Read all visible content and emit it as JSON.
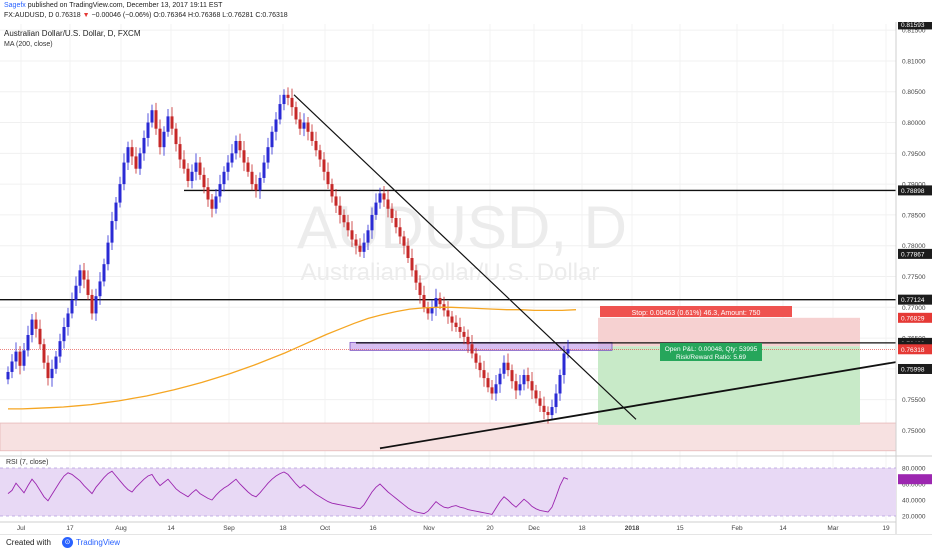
{
  "header": {
    "author": "Sagefx",
    "published": "published on TradingView.com, December 13, 2017 19:11 EST",
    "ticker": "FX:AUDUSD, D",
    "last": "0.76318",
    "arrow": "▼",
    "change": "−0.00046 (−0.06%)",
    "ohlc": "O:0.76364 H:0.76368 L:0.76281 C:0.76318"
  },
  "legend": {
    "symbol_title": "Australian Dollar/U.S. Dollar, D, FXCM",
    "ma_label": "MA (200, close)",
    "rsi_label": "RSI (7, close)"
  },
  "watermark": {
    "symbol": "AUDUSD, D",
    "name": "Australian Dollar/U.S. Dollar"
  },
  "position": {
    "stop_text": "Stop: 0.00463 (0.61%) 46.3, Amount: 750",
    "pnl_text": "Open P&L: 0.00048, Qty: 53995",
    "rr_text": "Risk/Reward Ratio: 5.69"
  },
  "footer": {
    "created_with": "Created with",
    "brand": "TradingView"
  },
  "colors": {
    "up": "#2a2ad4",
    "down": "#c62828",
    "ma": "#f5a623",
    "rsi": "#9c27b0",
    "rsi_band": "#e8d9f5",
    "stop_zone": "#f6d1d1",
    "target_zone": "#c8eac8",
    "supply_box": "#c9a8ee",
    "bottom_band": "#f7e1e1"
  },
  "chart_data": [
    {
      "type": "candlestick",
      "ylim": [
        0.7465,
        0.816
      ],
      "x_ticks": [
        "Jul",
        "17",
        "Aug",
        "14",
        "Sep",
        "18",
        "Oct",
        "16",
        "Nov",
        "20",
        "Dec",
        "18",
        "2018",
        "15",
        "Feb",
        "14",
        "Mar",
        "19"
      ],
      "y_ticks": [
        "0.81500",
        "0.81000",
        "0.80500",
        "0.80000",
        "0.79500",
        "0.79000",
        "0.78500",
        "0.78000",
        "0.77500",
        "0.77000",
        "0.76500",
        "0.76000",
        "0.75500",
        "0.75000"
      ],
      "price_labels": [
        {
          "value": 0.81593,
          "text": "0.81593",
          "color": "#222222"
        },
        {
          "value": 0.78898,
          "text": "0.78898",
          "color": "#222222"
        },
        {
          "value": 0.77867,
          "text": "0.77867",
          "color": "#222222"
        },
        {
          "value": 0.77124,
          "text": "0.77124",
          "color": "#222222"
        },
        {
          "value": 0.76829,
          "text": "0.76829",
          "color": "#e53935"
        },
        {
          "value": 0.76422,
          "text": "0.76422",
          "color": "#222222"
        },
        {
          "value": 0.76366,
          "text": "0.76366",
          "color": "#222222"
        },
        {
          "value": 0.76318,
          "text": "0.76318",
          "color": "#e53935"
        },
        {
          "value": 0.75998,
          "text": "0.75998",
          "color": "#222222"
        }
      ],
      "series": [
        {
          "name": "AUDUSD",
          "closes": [
            0.7595,
            0.7612,
            0.7628,
            0.7605,
            0.763,
            0.7655,
            0.768,
            0.7665,
            0.764,
            0.761,
            0.7585,
            0.76,
            0.762,
            0.7645,
            0.7668,
            0.769,
            0.7712,
            0.7735,
            0.776,
            0.7745,
            0.772,
            0.769,
            0.7718,
            0.7742,
            0.777,
            0.7805,
            0.784,
            0.787,
            0.79,
            0.7935,
            0.796,
            0.7945,
            0.7925,
            0.795,
            0.7975,
            0.8,
            0.802,
            0.799,
            0.796,
            0.7985,
            0.801,
            0.799,
            0.7965,
            0.794,
            0.7925,
            0.7905,
            0.792,
            0.7935,
            0.7915,
            0.7895,
            0.7875,
            0.786,
            0.788,
            0.79,
            0.792,
            0.7935,
            0.795,
            0.797,
            0.7955,
            0.7935,
            0.792,
            0.79,
            0.789,
            0.791,
            0.7935,
            0.796,
            0.7985,
            0.8005,
            0.803,
            0.8045,
            0.804,
            0.8025,
            0.8005,
            0.799,
            0.8,
            0.7985,
            0.797,
            0.7955,
            0.794,
            0.792,
            0.79,
            0.788,
            0.7865,
            0.785,
            0.7838,
            0.7825,
            0.781,
            0.78,
            0.779,
            0.7805,
            0.7825,
            0.785,
            0.787,
            0.7885,
            0.7875,
            0.786,
            0.7845,
            0.783,
            0.7815,
            0.78,
            0.778,
            0.776,
            0.774,
            0.772,
            0.77,
            0.769,
            0.77,
            0.7715,
            0.7705,
            0.7695,
            0.7685,
            0.7675,
            0.7668,
            0.766,
            0.7652,
            0.764,
            0.7625,
            0.761,
            0.7598,
            0.7585,
            0.757,
            0.756,
            0.7575,
            0.7592,
            0.761,
            0.7598,
            0.758,
            0.7565,
            0.7575,
            0.759,
            0.758,
            0.7565,
            0.7552,
            0.754,
            0.753,
            0.7525,
            0.7538,
            0.756,
            0.759,
            0.7625,
            0.7632
          ]
        },
        {
          "name": "MA (200, close)",
          "values": [
            0.7535,
            0.7535,
            0.7536,
            0.7537,
            0.7538,
            0.754,
            0.7542,
            0.7545,
            0.7548,
            0.7552,
            0.7556,
            0.7561,
            0.7566,
            0.7572,
            0.7578,
            0.7585,
            0.7592,
            0.76,
            0.7608,
            0.7617,
            0.7626,
            0.7636,
            0.7646,
            0.7656,
            0.7665,
            0.7674,
            0.7682,
            0.7688,
            0.7693,
            0.7697,
            0.7699,
            0.77,
            0.77,
            0.7699,
            0.7698,
            0.7697,
            0.7696,
            0.7696,
            0.7695,
            0.7695,
            0.7695,
            0.7696
          ]
        }
      ],
      "annotations": {
        "horizontal_levels": [
          0.78898,
          0.77124,
          0.76422
        ],
        "supply_box": [
          0.763,
          0.7643
        ],
        "stop_zone": [
          0.76366,
          0.76829
        ],
        "target_zone": [
          0.7509,
          0.76366
        ],
        "bottom_band": [
          0.7467,
          0.7512
        ],
        "down_trendline": [
          [
            0.8045
          ],
          [
            0.7518
          ]
        ],
        "up_trendline": [
          [
            0.7471
          ],
          [
            0.7611
          ]
        ]
      }
    },
    {
      "type": "line",
      "name": "RSI (7, close)",
      "ylim": [
        15,
        90
      ],
      "y_ticks": [
        "80.0000",
        "60.0000",
        "40.0000",
        "20.0000"
      ],
      "band": [
        20,
        80
      ],
      "values": [
        48,
        52,
        61,
        55,
        49,
        58,
        66,
        60,
        52,
        44,
        39,
        47,
        55,
        63,
        70,
        74,
        72,
        68,
        64,
        58,
        53,
        48,
        56,
        62,
        68,
        73,
        76,
        70,
        64,
        58,
        53,
        50,
        56,
        61,
        66,
        70,
        72,
        64,
        58,
        62,
        66,
        60,
        54,
        50,
        47,
        44,
        49,
        53,
        48,
        45,
        42,
        40,
        46,
        51,
        55,
        58,
        62,
        66,
        60,
        55,
        50,
        46,
        44,
        49,
        55,
        61,
        66,
        70,
        73,
        75,
        72,
        66,
        60,
        55,
        59,
        55,
        51,
        47,
        44,
        41,
        38,
        36,
        35,
        34,
        33,
        32,
        31,
        30,
        29,
        34,
        42,
        50,
        56,
        60,
        55,
        50,
        46,
        42,
        38,
        34,
        30,
        27,
        25,
        24,
        23,
        26,
        32,
        38,
        34,
        31,
        30,
        32,
        33,
        31,
        30,
        28,
        27,
        26,
        25,
        24,
        23,
        22,
        30,
        38,
        44,
        40,
        35,
        31,
        36,
        41,
        37,
        32,
        29,
        27,
        26,
        25,
        31,
        44,
        58,
        68,
        66
      ]
    }
  ]
}
